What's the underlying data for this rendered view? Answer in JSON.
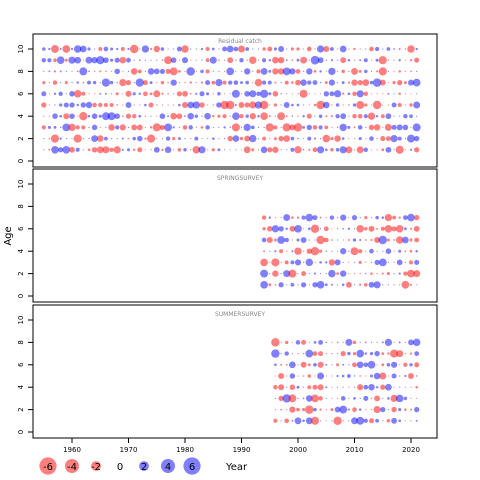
{
  "chart_data": {
    "type": "scatter",
    "subtype": "bubble",
    "ylabel": "Age",
    "xlabel": "Year",
    "x_ticks": [
      1960,
      1970,
      1980,
      1990,
      2000,
      2010,
      2020
    ],
    "y_ticks": [
      0,
      2,
      4,
      6,
      8,
      10
    ],
    "xlim": [
      1950,
      2025
    ],
    "ylim": [
      -0.5,
      11
    ],
    "colors": {
      "positive": "#0000ff",
      "negative": "#ff0000"
    },
    "legend": {
      "placement": "bottom-left",
      "values": [
        -6,
        -4,
        -2,
        0,
        2,
        4,
        6
      ]
    },
    "panels": [
      {
        "title": "Residual catch",
        "years": [
          1955,
          2021
        ],
        "ages": [
          1,
          10
        ]
      },
      {
        "title": "SPRINGSURVEY",
        "years": [
          1994,
          2021
        ],
        "ages": [
          1,
          7
        ]
      },
      {
        "title": "SUMMERSURVEY",
        "years": [
          1996,
          2021
        ],
        "ages": [
          1,
          8
        ]
      }
    ]
  }
}
